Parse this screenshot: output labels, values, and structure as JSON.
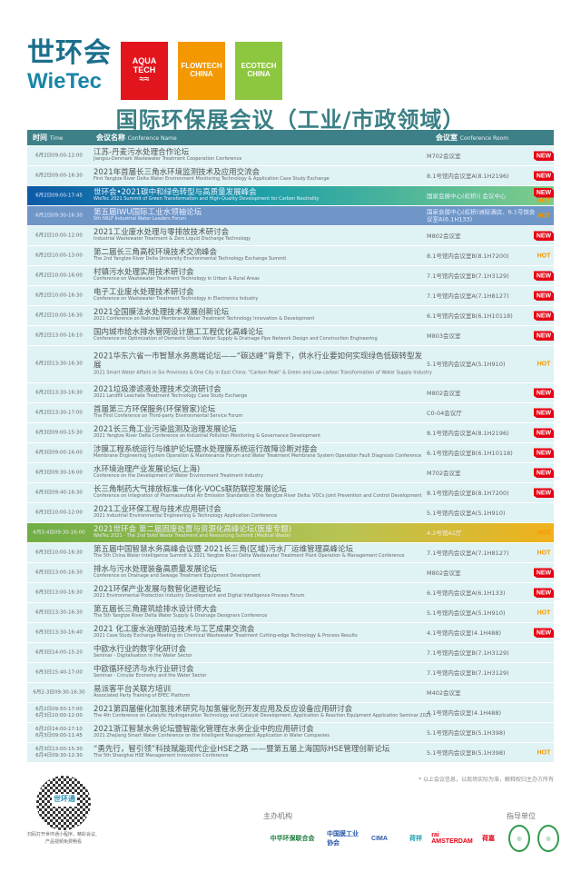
{
  "header": {
    "logo_cn": "世环会",
    "logo_en": "WieTec",
    "aqua": "AQUA TECH",
    "aqua_sub": "CHINA",
    "flow": "FLOWTECH",
    "flow_sub": "CHINA",
    "eco": "ECOTECH",
    "eco_sub": "CHINA"
  },
  "title": "国际环保展会议（工业/市政领域）",
  "table": {
    "col_time": "时间",
    "col_time_en": "Time",
    "col_name": "会议名称",
    "col_name_en": "Conference Name",
    "col_room": "会议室",
    "col_room_en": "Conference Room"
  },
  "colors": {
    "header": "#3d8088",
    "row": "#dff2f4",
    "new": "#e60012",
    "hot": "#f39800"
  },
  "rows": [
    {
      "time": "6月2日09:00-12:00",
      "cn": "江苏-丹麦污水处理合作论坛",
      "en": "Jiangsu-Denmark Wastewater Treatment Cooperation Conference",
      "room": "M702会议室",
      "badge": [
        "NEW"
      ]
    },
    {
      "time": "6月2日09:00-16:30",
      "cn": "2021年首届长三角水环境监测技术及应用交流会",
      "en": "First Yangtze River Delta Water Environment Monitoring Technology & Application Case Study Exchange",
      "room": "8.1号馆内会议室A(8.1H2196)",
      "badge": [
        "NEW"
      ]
    },
    {
      "time": "6月2日09:00-17:45",
      "cn": "世环会•2021碳中和绿色转型与高质量发展峰会",
      "en": "WieTec 2021 Summit of Green Transformation and High-Quality Development for Carbon Neutrality",
      "room": "国家会展中心(虹桥)| 会议中心",
      "badge": [
        "NEW",
        "HOT"
      ],
      "hl": "hl1"
    },
    {
      "time": "6月2日09:30-16:30",
      "cn": "第五届IWU国际工业水领袖论坛",
      "en": "5th IWLF Industrial Water Leaders Forum",
      "room": "国家会展中心(虹桥)洲际酒店、6.1号馆会议室A(6.1H133)",
      "badge": [
        "HOT"
      ],
      "hl": "hl2"
    },
    {
      "time": "6月2日10:00-12:00",
      "cn": "2021工业废水处理与零排放技术研讨会",
      "en": "Industrial Wastewater Treatment & Zero Liquid Discharge Technology",
      "room": "M802会议室",
      "badge": [
        "NEW"
      ]
    },
    {
      "time": "6月2日10:00-13:00",
      "cn": "第二届长三角高校环境技术交流峰会",
      "en": "The 2nd Yangtze River Delta University Environmental Technology Exchange Summit",
      "room": "8.1号馆内会议室B(8.1H7200)",
      "badge": [
        "HOT"
      ]
    },
    {
      "time": "6月2日10:00-16:00",
      "cn": "村镇污水处理实用技术研讨会",
      "en": "Conference on Wastewater Treatment Technology in Urban & Rural Areas",
      "room": "7.1号馆内会议室B(7.1H3129)",
      "badge": [
        "NEW"
      ]
    },
    {
      "time": "6月2日10:00-16:30",
      "cn": "电子工业废水处理技术研讨会",
      "en": "Conference on Wastewater Treatment Technology in Electronics Industry",
      "room": "7.1号馆内会议室A(7.1H8127)",
      "badge": [
        "NEW"
      ]
    },
    {
      "time": "6月2日10:00-16:30",
      "cn": "2021全国膜法水处理技术发展创新论坛",
      "en": "2021 Conference on National Membrane Water Treatment Technology Innovation & Development",
      "room": "6.1号馆内会议室B(6.1H10118)",
      "badge": [
        "NEW"
      ]
    },
    {
      "time": "6月2日13:00-16:10",
      "cn": "国内城市给水排水管网设计施工工程优化高峰论坛",
      "en": "Conference on Optimization of Domestic Urban Water Supply & Drainage Pipe Network Design and Construction Engineering",
      "room": "M803会议室",
      "badge": [
        "NEW"
      ]
    },
    {
      "time": "6月2日13:30-16:30",
      "cn": "2021华东六省一市智慧水务高端论坛——“碳达峰”背景下，供水行业要如何实现绿色低碳转型发展",
      "en": "2021 Smart Water Affairs in Six Provinces & One City in East China: \"Carbon Peak\" & Green and Low-carbon Transformation of Water Supply Industry",
      "room": "5.1号馆内会议室A(5.1H910)",
      "badge": [
        "HOT"
      ],
      "tall": true
    },
    {
      "time": "6月2日13:30-16:30",
      "cn": "2021垃圾渗滤液处理技术交流研讨会",
      "en": "2021 Landfill Leachate Treatment Technology Case Study Exchange",
      "room": "M802会议室",
      "badge": [
        "NEW"
      ]
    },
    {
      "time": "6月2日13:30-17:00",
      "cn": "首届第三方环保服务(环保管家)论坛",
      "en": "The First Conference on Third-party Environmental Service Forum",
      "room": "C0-04会议厅",
      "badge": [
        "NEW"
      ]
    },
    {
      "time": "6月3日09:00-15:30",
      "cn": "2021长三角工业污染监测及治理发展论坛",
      "en": "2021 Yangtze River Delta Conference on Industrial Pollution Monitoring & Governance Development",
      "room": "8.1号馆内会议室A(8.1H2196)",
      "badge": [
        "NEW"
      ]
    },
    {
      "time": "6月3日09:00-16:00",
      "cn": "涉膜工程系统运行与维护论坛暨水处理膜系统运行故障诊断对接会",
      "en": "Membrane Engineering System Operation & Maintenance Forum and Water Treatment Membrane System Operation Fault Diagnosis Conference",
      "room": "6.1号馆内会议室B(6.1H10118)",
      "badge": [
        "NEW"
      ]
    },
    {
      "time": "6月3日09:30-16:00",
      "cn": "水环境治理产业发展论坛(上海)",
      "en": "Conference on the Development of Water Environment Treatment Industry",
      "room": "M702会议室",
      "badge": [
        "NEW"
      ]
    },
    {
      "time": "6月3日09:40-16:30",
      "cn": "长三角制药大气排放标准一体化-VOCs联防联控发展论坛",
      "en": "Conference on Integration of Pharmaceutical Air Emission Standards in the Yangtze River Delta: VOCs Joint Prevention and Control Development",
      "room": "8.1号馆内会议室B(8.1H7200)",
      "badge": [
        "NEW"
      ]
    },
    {
      "time": "6月3日10:00-12:00",
      "cn": "2021工业环保工程与技术应用研讨会",
      "en": "2021 Industrial Environmental Engineering & Technology Application Conference",
      "room": "5.1号馆内会议室A(5.1H910)",
      "badge": []
    },
    {
      "time": "6月3-4日09:30-16:00",
      "cn": "2021世环会 第二届固废处置与资源化高峰论坛(医废专题)",
      "en": "WieTec 2021 - The 2nd Solid Waste Treatment and Resourcing Summit (Medical Waste)",
      "room": "4.2号馆A1厅",
      "badge": [
        "HOT"
      ],
      "hl": "hl3"
    },
    {
      "time": "6月3日10:00-16:30",
      "cn": "第五届中国智慧水务高峰会议暨 2021长三角(区域)污水厂运维管理高峰论坛",
      "en": "The 5th China Water Intelligence Summit & 2021 Yangtze River Delta Wastewater Treatment Plant Operation & Management Conference",
      "room": "7.1号馆内会议室A(7.1H8127)",
      "badge": [
        "HOT"
      ]
    },
    {
      "time": "6月3日13:00-16:30",
      "cn": "排水与污水处理装备高质量发展论坛",
      "en": "Conference on Drainage and Sewage Treatment Equipment Development",
      "room": "M802会议室",
      "badge": [
        "NEW"
      ]
    },
    {
      "time": "6月3日13:00-16:30",
      "cn": "2021环保产业发展与数智化进程论坛",
      "en": "2021 Environmental Protection Industry Development and Digital Intelligence Process Forum",
      "room": "6.1号馆内会议室A(6.1H133)",
      "badge": [
        "NEW"
      ]
    },
    {
      "time": "6月3日13:30-16:30",
      "cn": "第五届长三角建筑给排水设计师大会",
      "en": "The 5th Yangtze River Delta Water Supply & Drainage Designers Conference",
      "room": "5.1号馆内会议室A(5.1H910)",
      "badge": [
        "HOT"
      ]
    },
    {
      "time": "6月3日13:30-16:40",
      "cn": "2021 化工废水治理前沿技术与工艺成果交流会",
      "en": "2021 Case Study Exchange Meeting on Chemical Wastewater Treatment Cutting-edge Technology & Process Results",
      "room": "4.1号馆内会议室(4.1H488)",
      "badge": [
        "NEW"
      ]
    },
    {
      "time": "6月3日14:00-15:20",
      "cn": "中欧水行业的数字化研讨会",
      "en": "Seminar - Digitalisation in the Water Sector",
      "room": "7.1号馆内会议室B(7.1H3129)",
      "badge": []
    },
    {
      "time": "6月3日15:40-17:00",
      "cn": "中欧循环经济与水行业研讨会",
      "en": "Seminar - Circular Economy and the Water Sector",
      "room": "7.1号馆内会议室B(7.1H3129)",
      "badge": []
    },
    {
      "time": "6月2-3日09:30-16:30",
      "cn": "易派客平台关联方培训",
      "en": "Associated Party Training of EPEC Platform",
      "room": "M402会议室",
      "badge": []
    },
    {
      "time": "6月2日09:50-17:00\n6月3日10:00-12:00",
      "cn": "2021第四届催化加氢技术研究与加氢催化剂开发应用及反应设备应用研讨会",
      "en": "The 4th Conference on Catalytic Hydrogenation Technology and Catalyst Development, Application & Reaction Equipment Application Seminar 2021",
      "room": "4.1号馆内会议室(4.1H488)",
      "badge": []
    },
    {
      "time": "6月2日14:00-17:10\n6月3日09:00-11:45",
      "cn": "2021浙江智慧水务论坛暨智能化管理在水务企业中的应用研讨会",
      "en": "2021 Zhejiang Smart Water Conference on the Intelligent Management Application in Water Companies",
      "room": "5.1号馆内会议室B(5.1H398)",
      "badge": []
    },
    {
      "time": "6月3日13:00-15:30\n6月4日09:30-12:30",
      "cn": "“勇先行，智引领”科技赋能现代企业HSE之路 ——暨第五届上海国际HSE管理创新论坛",
      "en": "The 5th Shanghai HSE Management Innovation Conference",
      "room": "5.1号馆内会议室B(5.1H398)",
      "badge": [
        "HOT"
      ]
    }
  ],
  "footer": {
    "note": "* 以上会议信息，以现场实际为准，解释权归主办方所有",
    "qr_label": "世环通",
    "qr_caption": "扫码打开世环通小程序，精彩会议、产品视频免费畅看",
    "organizers_label": "主办机构",
    "guide_label": "指导单位",
    "organizers": [
      "中华环保联合会",
      "中国膜工业协会",
      "CIMA",
      "荷祥",
      "rai AMSTERDAM",
      "荷嘉"
    ]
  }
}
